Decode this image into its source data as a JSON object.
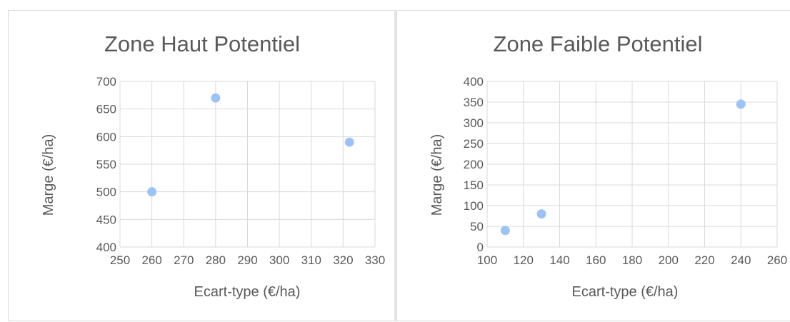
{
  "chart_data": [
    {
      "type": "scatter",
      "title": "Zone Haut Potentiel",
      "xlabel": "Ecart-type (€/ha)",
      "ylabel": "Marge (€/ha)",
      "xlim": [
        250,
        330
      ],
      "ylim": [
        400,
        700
      ],
      "xticks": [
        "250",
        "260",
        "270",
        "280",
        "290",
        "300",
        "310",
        "320",
        "330"
      ],
      "yticks": [
        "400",
        "450",
        "500",
        "550",
        "600",
        "650",
        "700"
      ],
      "grid": true,
      "points": [
        {
          "x": 260,
          "y": 500
        },
        {
          "x": 280,
          "y": 670
        },
        {
          "x": 322,
          "y": 590
        }
      ],
      "colors": {
        "marker": "#9dc3f5",
        "grid": "#d9d9d9",
        "text": "#595959"
      }
    },
    {
      "type": "scatter",
      "title": "Zone Faible Potentiel",
      "xlabel": "Ecart-type (€/ha)",
      "ylabel": "Marge (€/ha)",
      "xlim": [
        100,
        260
      ],
      "ylim": [
        0,
        400
      ],
      "xticks": [
        "100",
        "120",
        "140",
        "160",
        "180",
        "200",
        "220",
        "240",
        "260"
      ],
      "yticks": [
        "0",
        "50",
        "100",
        "150",
        "200",
        "250",
        "300",
        "350",
        "400"
      ],
      "grid": true,
      "points": [
        {
          "x": 110,
          "y": 40
        },
        {
          "x": 130,
          "y": 80
        },
        {
          "x": 240,
          "y": 345
        }
      ],
      "colors": {
        "marker": "#9dc3f5",
        "grid": "#d9d9d9",
        "text": "#595959"
      }
    }
  ]
}
